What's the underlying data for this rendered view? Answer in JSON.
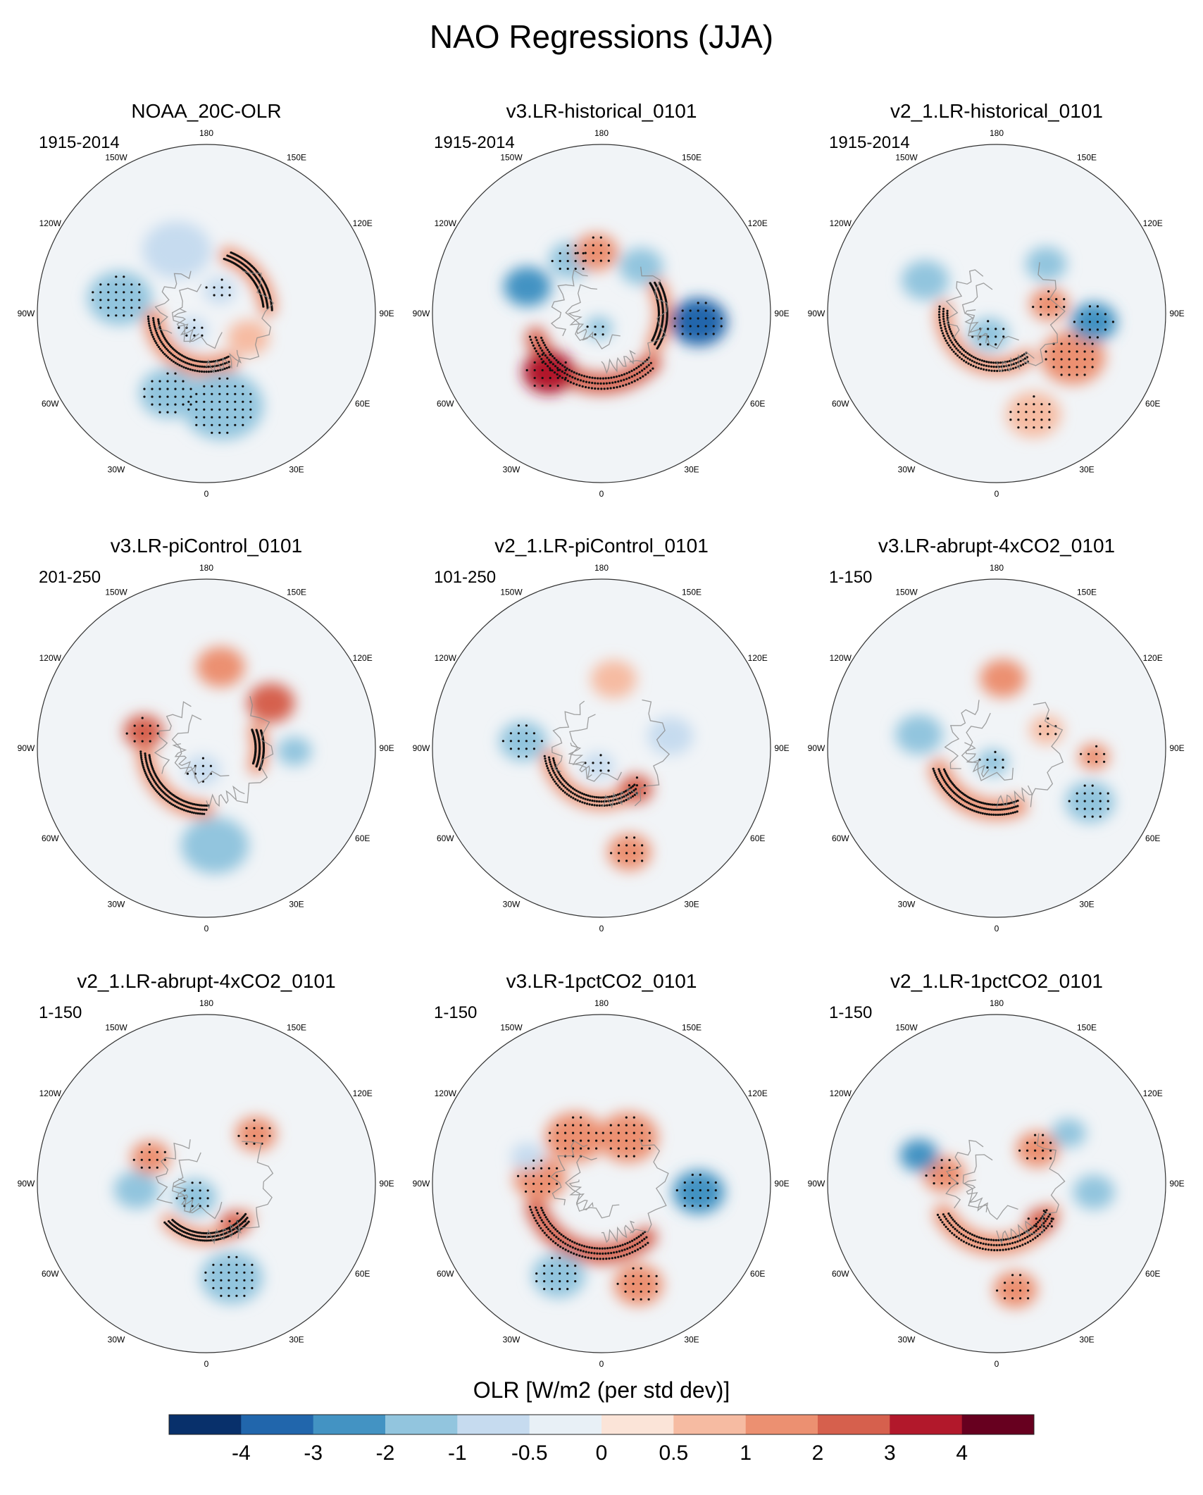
{
  "chart_data": {
    "type": "polar-map-grid",
    "title": "NAO Regressions (JJA)",
    "projection": "north-polar-stereographic",
    "panels": [
      {
        "name": "NOAA_20C-OLR",
        "period": "1915-2014",
        "features": [
          {
            "kind": "band",
            "value": 1.6,
            "lon_from": -85,
            "lon_to": 25,
            "lat": 55,
            "width": 12,
            "stippled": true
          },
          {
            "kind": "band",
            "value": 1.3,
            "lon_from": 95,
            "lon_to": 160,
            "lat": 50,
            "width": 10,
            "stippled": true
          },
          {
            "kind": "blob",
            "value": -1.3,
            "lon": 10,
            "lat": 32,
            "r": 16,
            "stippled": true
          },
          {
            "kind": "blob",
            "value": -1.1,
            "lon": -25,
            "lat": 35,
            "r": 12,
            "stippled": true
          },
          {
            "kind": "blob",
            "value": -1.2,
            "lon": -100,
            "lat": 35,
            "r": 13,
            "stippled": true
          },
          {
            "kind": "blob",
            "value": -0.8,
            "lon": -155,
            "lat": 45,
            "r": 15,
            "stippled": false
          },
          {
            "kind": "blob",
            "value": -0.9,
            "lon": -40,
            "lat": 75,
            "r": 8,
            "stippled": true
          },
          {
            "kind": "blob",
            "value": -0.9,
            "lon": 150,
            "lat": 72,
            "r": 8,
            "stippled": true
          },
          {
            "kind": "blob",
            "value": 0.6,
            "lon": 60,
            "lat": 58,
            "r": 10,
            "stippled": false
          }
        ]
      },
      {
        "name": "v3.LR-historical_0101",
        "period": "1915-2014",
        "features": [
          {
            "kind": "band",
            "value": 2.4,
            "lon_from": -70,
            "lon_to": 45,
            "lat": 45,
            "width": 12,
            "stippled": true
          },
          {
            "kind": "blob",
            "value": 3.0,
            "lon": -42,
            "lat": 40,
            "r": 11,
            "stippled": true
          },
          {
            "kind": "band",
            "value": 1.4,
            "lon_from": 60,
            "lon_to": 120,
            "lat": 50,
            "width": 10,
            "stippled": true
          },
          {
            "kind": "blob",
            "value": -3.2,
            "lon": 85,
            "lat": 30,
            "r": 11,
            "stippled": true
          },
          {
            "kind": "blob",
            "value": -2.2,
            "lon": -110,
            "lat": 40,
            "r": 10,
            "stippled": false
          },
          {
            "kind": "blob",
            "value": -1.1,
            "lon": -150,
            "lat": 50,
            "r": 10,
            "stippled": true
          },
          {
            "kind": "blob",
            "value": -1.1,
            "lon": 140,
            "lat": 50,
            "r": 10,
            "stippled": false
          },
          {
            "kind": "blob",
            "value": 1.4,
            "lon": -175,
            "lat": 50,
            "r": 10,
            "stippled": true
          },
          {
            "kind": "blob",
            "value": -1.1,
            "lon": -10,
            "lat": 80,
            "r": 7,
            "stippled": true
          }
        ]
      },
      {
        "name": "v2_1.LR-historical_0101",
        "period": "1915-2014",
        "features": [
          {
            "kind": "band",
            "value": 1.6,
            "lon_from": -95,
            "lon_to": 35,
            "lat": 55,
            "width": 10,
            "stippled": true
          },
          {
            "kind": "blob",
            "value": 1.5,
            "lon": 60,
            "lat": 35,
            "r": 13,
            "stippled": true
          },
          {
            "kind": "blob",
            "value": -2.1,
            "lon": 85,
            "lat": 30,
            "r": 9,
            "stippled": true
          },
          {
            "kind": "blob",
            "value": -1.2,
            "lon": -20,
            "lat": 75,
            "r": 10,
            "stippled": true
          },
          {
            "kind": "blob",
            "value": -1.4,
            "lon": -115,
            "lat": 40,
            "r": 10,
            "stippled": false
          },
          {
            "kind": "blob",
            "value": -1.5,
            "lon": 135,
            "lat": 45,
            "r": 9,
            "stippled": false
          },
          {
            "kind": "blob",
            "value": 1.2,
            "lon": 100,
            "lat": 55,
            "r": 9,
            "stippled": true
          },
          {
            "kind": "blob",
            "value": 0.8,
            "lon": 20,
            "lat": 25,
            "r": 10,
            "stippled": true
          }
        ]
      },
      {
        "name": "v3.LR-piControl_0101",
        "period": "201-250",
        "features": [
          {
            "kind": "band",
            "value": 1.8,
            "lon_from": -85,
            "lon_to": 0,
            "lat": 50,
            "width": 10,
            "stippled": true
          },
          {
            "kind": "blob",
            "value": 2.5,
            "lon": -105,
            "lat": 48,
            "r": 9,
            "stippled": true
          },
          {
            "kind": "band",
            "value": 1.5,
            "lon_from": 70,
            "lon_to": 110,
            "lat": 55,
            "width": 10,
            "stippled": true
          },
          {
            "kind": "blob",
            "value": 2.3,
            "lon": 125,
            "lat": 40,
            "r": 10,
            "stippled": false
          },
          {
            "kind": "blob",
            "value": 1.8,
            "lon": 170,
            "lat": 38,
            "r": 10,
            "stippled": false
          },
          {
            "kind": "blob",
            "value": -1.1,
            "lon": 5,
            "lat": 30,
            "r": 13,
            "stippled": false
          },
          {
            "kind": "blob",
            "value": -1.4,
            "lon": 88,
            "lat": 35,
            "r": 7,
            "stippled": false
          },
          {
            "kind": "blob",
            "value": -0.8,
            "lon": -10,
            "lat": 75,
            "r": 9,
            "stippled": true
          }
        ]
      },
      {
        "name": "v2_1.LR-piControl_0101",
        "period": "101-250",
        "features": [
          {
            "kind": "band",
            "value": 1.5,
            "lon_from": -80,
            "lon_to": 40,
            "lat": 55,
            "width": 10,
            "stippled": true
          },
          {
            "kind": "blob",
            "value": 2.1,
            "lon": 40,
            "lat": 55,
            "r": 8,
            "stippled": true
          },
          {
            "kind": "blob",
            "value": -1.3,
            "lon": -95,
            "lat": 40,
            "r": 10,
            "stippled": true
          },
          {
            "kind": "blob",
            "value": -1.0,
            "lon": -10,
            "lat": 78,
            "r": 8,
            "stippled": true
          },
          {
            "kind": "blob",
            "value": 1.1,
            "lon": 15,
            "lat": 25,
            "r": 8,
            "stippled": true
          },
          {
            "kind": "blob",
            "value": -0.8,
            "lon": 100,
            "lat": 45,
            "r": 10,
            "stippled": false
          },
          {
            "kind": "blob",
            "value": 0.8,
            "lon": 170,
            "lat": 45,
            "r": 10,
            "stippled": false
          }
        ]
      },
      {
        "name": "v3.LR-abrupt-4xCO2_0101",
        "period": "1-150",
        "features": [
          {
            "kind": "band",
            "value": 1.6,
            "lon_from": -70,
            "lon_to": 20,
            "lat": 50,
            "width": 12,
            "stippled": true
          },
          {
            "kind": "blob",
            "value": -1.5,
            "lon": -15,
            "lat": 80,
            "r": 8,
            "stippled": true
          },
          {
            "kind": "blob",
            "value": -1.2,
            "lon": -100,
            "lat": 40,
            "r": 10,
            "stippled": false
          },
          {
            "kind": "blob",
            "value": -1.1,
            "lon": 60,
            "lat": 25,
            "r": 9,
            "stippled": true
          },
          {
            "kind": "blob",
            "value": 1.2,
            "lon": 175,
            "lat": 45,
            "r": 10,
            "stippled": false
          },
          {
            "kind": "blob",
            "value": 1.1,
            "lon": 85,
            "lat": 30,
            "r": 6,
            "stippled": true
          },
          {
            "kind": "blob",
            "value": 0.9,
            "lon": 110,
            "lat": 55,
            "r": 8,
            "stippled": true
          }
        ]
      },
      {
        "name": "v2_1.LR-abrupt-4xCO2_0101",
        "period": "1-150",
        "features": [
          {
            "kind": "blob",
            "value": -2.0,
            "lon": -40,
            "lat": 78,
            "r": 11,
            "stippled": true
          },
          {
            "kind": "band",
            "value": 1.5,
            "lon_from": -45,
            "lon_to": 50,
            "lat": 55,
            "width": 9,
            "stippled": true
          },
          {
            "kind": "blob",
            "value": 2.2,
            "lon": 35,
            "lat": 58,
            "r": 7,
            "stippled": true
          },
          {
            "kind": "blob",
            "value": -1.2,
            "lon": 15,
            "lat": 30,
            "r": 12,
            "stippled": true
          },
          {
            "kind": "blob",
            "value": -1.1,
            "lon": -85,
            "lat": 45,
            "r": 10,
            "stippled": false
          },
          {
            "kind": "blob",
            "value": 1.2,
            "lon": -115,
            "lat": 50,
            "r": 9,
            "stippled": true
          },
          {
            "kind": "blob",
            "value": 1.2,
            "lon": 135,
            "lat": 45,
            "r": 9,
            "stippled": true
          }
        ]
      },
      {
        "name": "v3.LR-1pctCO2_0101",
        "period": "1-150",
        "features": [
          {
            "kind": "band",
            "value": 2.2,
            "lon_from": -70,
            "lon_to": 40,
            "lat": 45,
            "width": 12,
            "stippled": true
          },
          {
            "kind": "blob",
            "value": 1.5,
            "lon": -150,
            "lat": 55,
            "r": 14,
            "stippled": true
          },
          {
            "kind": "blob",
            "value": 1.4,
            "lon": 150,
            "lat": 55,
            "r": 14,
            "stippled": true
          },
          {
            "kind": "blob",
            "value": 1.6,
            "lon": -95,
            "lat": 50,
            "r": 12,
            "stippled": true
          },
          {
            "kind": "blob",
            "value": -3.0,
            "lon": 85,
            "lat": 30,
            "r": 10,
            "stippled": true
          },
          {
            "kind": "blob",
            "value": -1.2,
            "lon": -25,
            "lat": 28,
            "r": 10,
            "stippled": true
          },
          {
            "kind": "blob",
            "value": -1.0,
            "lon": -110,
            "lat": 40,
            "r": 7,
            "stippled": false
          },
          {
            "kind": "blob",
            "value": 1.2,
            "lon": 20,
            "lat": 25,
            "r": 9,
            "stippled": true
          }
        ]
      },
      {
        "name": "v2_1.LR-1pctCO2_0101",
        "period": "1-150",
        "features": [
          {
            "kind": "band",
            "value": 1.8,
            "lon_from": -60,
            "lon_to": 60,
            "lat": 50,
            "width": 12,
            "stippled": true
          },
          {
            "kind": "blob",
            "value": 2.6,
            "lon": 50,
            "lat": 52,
            "r": 7,
            "stippled": true
          },
          {
            "kind": "blob",
            "value": 1.9,
            "lon": -100,
            "lat": 55,
            "r": 10,
            "stippled": true
          },
          {
            "kind": "blob",
            "value": -2.2,
            "lon": -110,
            "lat": 38,
            "r": 8,
            "stippled": false
          },
          {
            "kind": "blob",
            "value": -1.2,
            "lon": 85,
            "lat": 30,
            "r": 8,
            "stippled": false
          },
          {
            "kind": "blob",
            "value": 1.3,
            "lon": 130,
            "lat": 55,
            "r": 10,
            "stippled": true
          },
          {
            "kind": "blob",
            "value": 1.2,
            "lon": 10,
            "lat": 25,
            "r": 8,
            "stippled": true
          },
          {
            "kind": "blob",
            "value": -1.1,
            "lon": 125,
            "lat": 35,
            "r": 7,
            "stippled": false
          }
        ]
      }
    ],
    "longitude_labels": [
      {
        "text": "180",
        "lon": 180
      },
      {
        "text": "150E",
        "lon": 150
      },
      {
        "text": "120E",
        "lon": 120
      },
      {
        "text": "90E",
        "lon": 90
      },
      {
        "text": "60E",
        "lon": 60
      },
      {
        "text": "30E",
        "lon": 30
      },
      {
        "text": "0",
        "lon": 0
      },
      {
        "text": "30W",
        "lon": -30
      },
      {
        "text": "60W",
        "lon": -60
      },
      {
        "text": "90W",
        "lon": -90
      },
      {
        "text": "120W",
        "lon": -120
      },
      {
        "text": "150W",
        "lon": -150
      }
    ],
    "colorbar": {
      "label": "OLR [W/m2 (per std dev)]",
      "levels": [
        -4,
        -3,
        -2,
        -1,
        -0.5,
        0,
        0.5,
        1,
        2,
        3,
        4
      ],
      "tick_labels": [
        "-4",
        "-3",
        "-2",
        "-1",
        "-0.5",
        "0",
        "0.5",
        "1",
        "2",
        "3",
        "4"
      ],
      "colors": [
        "#08306b",
        "#2166ac",
        "#4393c3",
        "#92c5de",
        "#c6dbef",
        "#e8f0f6",
        "#fbe4d8",
        "#f6bba2",
        "#ec9071",
        "#d6604d",
        "#b2182b",
        "#67001f"
      ]
    },
    "stipple_meaning": "statistically significant"
  }
}
